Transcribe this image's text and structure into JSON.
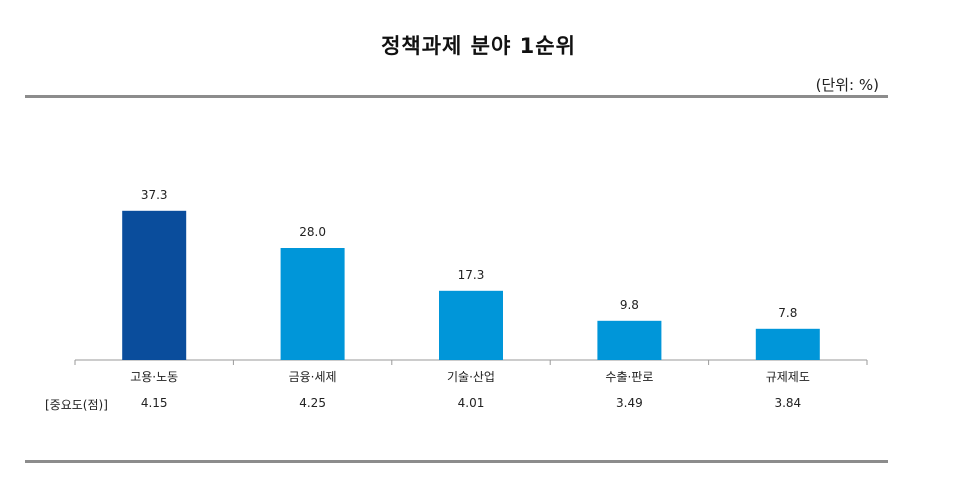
{
  "title": "정책과제 분야 1순위",
  "unit_label": "(단위: %)",
  "importance_label": "[중요도(점)]",
  "importance_values": [
    "4.15",
    "4.25",
    "4.01",
    "3.49",
    "3.84"
  ],
  "colors": {
    "highlight": "#0a4d9c",
    "bar": "#0096d9",
    "axis": "#9a9a9a",
    "rule": "#8c8c8c"
  },
  "chart_data": {
    "type": "bar",
    "title": "정책과제 분야 1순위",
    "categories": [
      "고용·노동",
      "금융·세제",
      "기술·산업",
      "수출·판로",
      "규제제도"
    ],
    "values": [
      37.3,
      28.0,
      17.3,
      9.8,
      7.8
    ],
    "value_labels": [
      "37.3",
      "28.0",
      "17.3",
      "9.8",
      "7.8"
    ],
    "highlighted_index": 0,
    "xlabel": "",
    "ylabel": "",
    "ylim": [
      0,
      50
    ],
    "grid": false,
    "legend": "none"
  }
}
